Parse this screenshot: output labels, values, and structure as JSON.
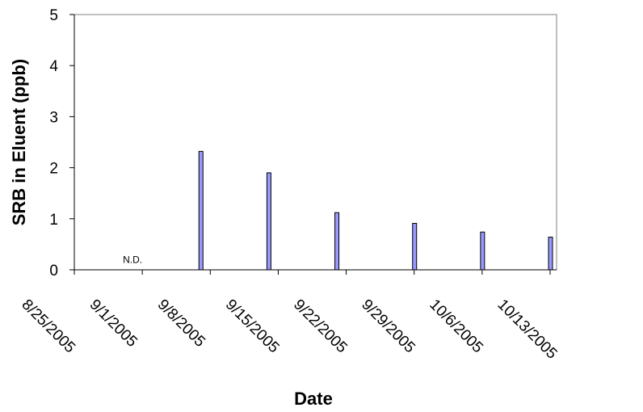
{
  "chart_data": {
    "type": "bar",
    "title": "",
    "xlabel": "Date",
    "ylabel": "SRB in Eluent (ppb)",
    "ylim": [
      0,
      5
    ],
    "yticks": [
      "0",
      "1",
      "2",
      "3",
      "4",
      "5"
    ],
    "xlim": [
      "8/25/2005",
      "10/13/2005"
    ],
    "xticks": [
      "8/25/2005",
      "9/1/2005",
      "9/8/2005",
      "9/15/2005",
      "9/22/2005",
      "9/29/2005",
      "10/6/2005",
      "10/13/2005"
    ],
    "bars": [
      {
        "date": "9/7/2005",
        "value": 2.32
      },
      {
        "date": "9/14/2005",
        "value": 1.9
      },
      {
        "date": "9/21/2005",
        "value": 1.12
      },
      {
        "date": "9/29/2005",
        "value": 0.91
      },
      {
        "date": "10/6/2005",
        "value": 0.74
      },
      {
        "date": "10/13/2005",
        "value": 0.64
      }
    ],
    "annotations": [
      {
        "text": "N.D.",
        "date": "8/31/2005",
        "value": 0.2
      }
    ],
    "bar_color": "#9999ff",
    "grid": false,
    "legend": "none"
  }
}
